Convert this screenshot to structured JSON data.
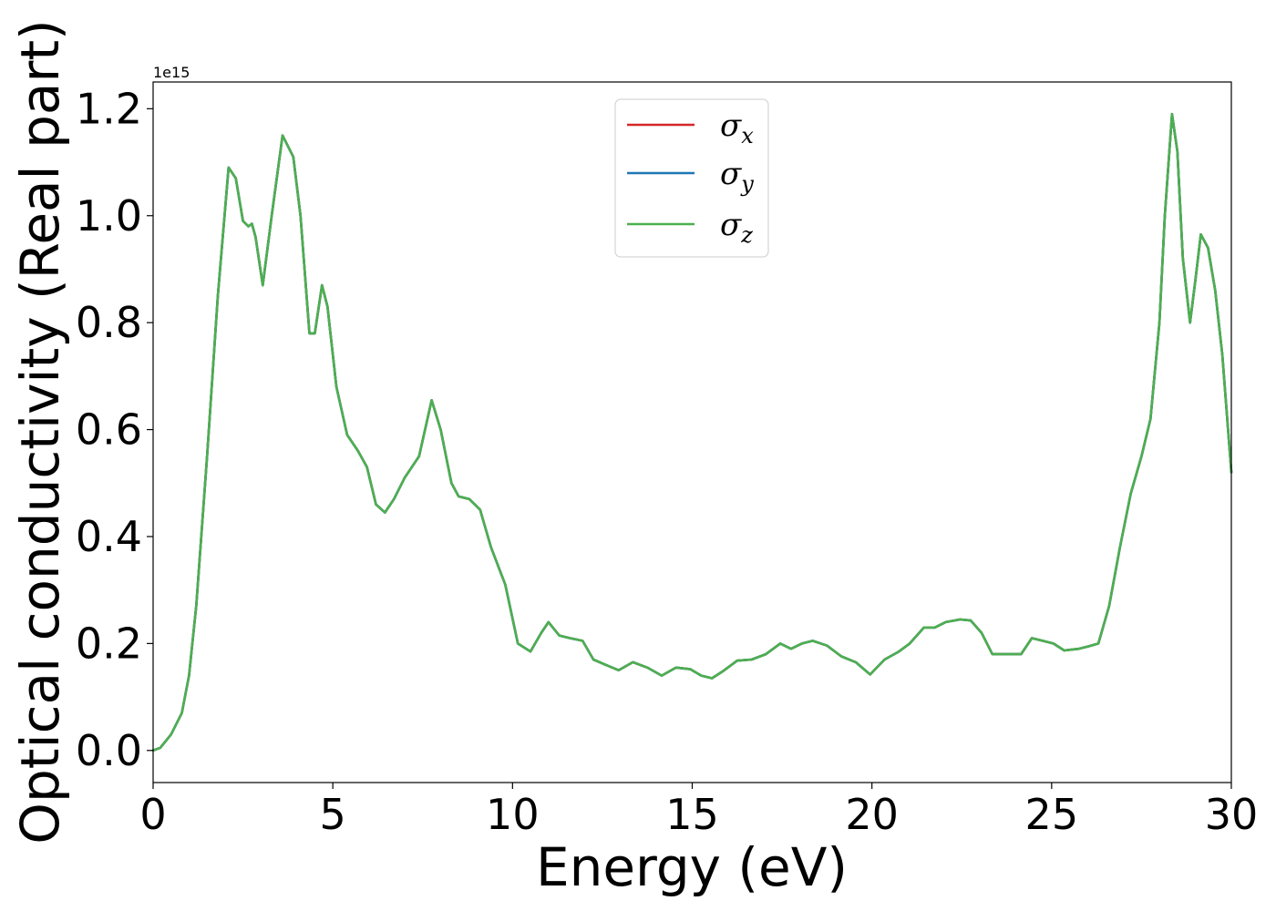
{
  "chart_data": {
    "type": "line",
    "title": "",
    "xlabel": "Energy (eV)",
    "ylabel": "Optical conductivity (Real part)",
    "y_offset_label": "1e15",
    "xlim": [
      0,
      30
    ],
    "ylim": [
      -0.06,
      1.25
    ],
    "x_ticks": [
      0,
      5,
      10,
      15,
      20,
      25,
      30
    ],
    "x_tick_labels": [
      "0",
      "5",
      "10",
      "15",
      "20",
      "25",
      "30"
    ],
    "y_ticks": [
      0.0,
      0.2,
      0.4,
      0.6,
      0.8,
      1.0,
      1.2
    ],
    "y_tick_labels": [
      "0.0",
      "0.2",
      "0.4",
      "0.6",
      "0.8",
      "1.0",
      "1.2"
    ],
    "grid": false,
    "legend_position": "top-center",
    "series": [
      {
        "name": "σx",
        "symbol": "σ",
        "sub": "x",
        "color": "#d62728"
      },
      {
        "name": "σy",
        "symbol": "σ",
        "sub": "y",
        "color": "#1f77b4"
      },
      {
        "name": "σz",
        "symbol": "σ",
        "sub": "z",
        "color": "#4caf50"
      }
    ],
    "x": [
      0,
      0.2,
      0.5,
      0.8,
      1.0,
      1.2,
      1.5,
      1.8,
      2.1,
      2.3,
      2.5,
      2.65,
      2.75,
      2.85,
      3.05,
      3.3,
      3.6,
      3.9,
      4.1,
      4.35,
      4.5,
      4.7,
      4.85,
      5.1,
      5.4,
      5.7,
      5.95,
      6.2,
      6.45,
      6.7,
      7.0,
      7.4,
      7.75,
      8.0,
      8.3,
      8.5,
      8.8,
      9.1,
      9.4,
      9.8,
      10.15,
      10.5,
      10.8,
      11.0,
      11.3,
      11.6,
      11.95,
      12.25,
      12.6,
      12.95,
      13.35,
      13.75,
      14.15,
      14.55,
      14.95,
      15.25,
      15.55,
      15.85,
      16.25,
      16.65,
      17.05,
      17.45,
      17.75,
      18.05,
      18.35,
      18.75,
      19.15,
      19.55,
      19.95,
      20.35,
      20.75,
      21.05,
      21.45,
      21.75,
      22.05,
      22.45,
      22.75,
      23.05,
      23.35,
      23.75,
      24.15,
      24.45,
      24.75,
      25.05,
      25.35,
      25.75,
      26.05,
      26.3,
      26.6,
      26.9,
      27.2,
      27.5,
      27.75,
      28.0,
      28.15,
      28.35,
      28.5,
      28.65,
      28.85,
      29.0,
      29.15,
      29.35,
      29.55,
      29.75,
      30.0
    ],
    "y_series_common": [
      0.0,
      0.005,
      0.03,
      0.07,
      0.14,
      0.27,
      0.55,
      0.85,
      1.09,
      1.07,
      0.99,
      0.98,
      0.985,
      0.96,
      0.87,
      1.0,
      1.15,
      1.11,
      1.0,
      0.78,
      0.78,
      0.87,
      0.83,
      0.68,
      0.59,
      0.56,
      0.53,
      0.46,
      0.445,
      0.47,
      0.51,
      0.55,
      0.655,
      0.6,
      0.5,
      0.475,
      0.47,
      0.45,
      0.38,
      0.31,
      0.2,
      0.185,
      0.22,
      0.24,
      0.215,
      0.21,
      0.205,
      0.17,
      0.16,
      0.15,
      0.165,
      0.155,
      0.14,
      0.155,
      0.152,
      0.14,
      0.135,
      0.148,
      0.168,
      0.17,
      0.18,
      0.2,
      0.19,
      0.2,
      0.205,
      0.196,
      0.176,
      0.165,
      0.142,
      0.17,
      0.185,
      0.2,
      0.23,
      0.23,
      0.24,
      0.245,
      0.243,
      0.22,
      0.18,
      0.18,
      0.18,
      0.21,
      0.205,
      0.2,
      0.187,
      0.19,
      0.195,
      0.2,
      0.27,
      0.38,
      0.48,
      0.55,
      0.62,
      0.8,
      1.0,
      1.19,
      1.12,
      0.92,
      0.8,
      0.88,
      0.965,
      0.94,
      0.86,
      0.74,
      0.52
    ]
  }
}
